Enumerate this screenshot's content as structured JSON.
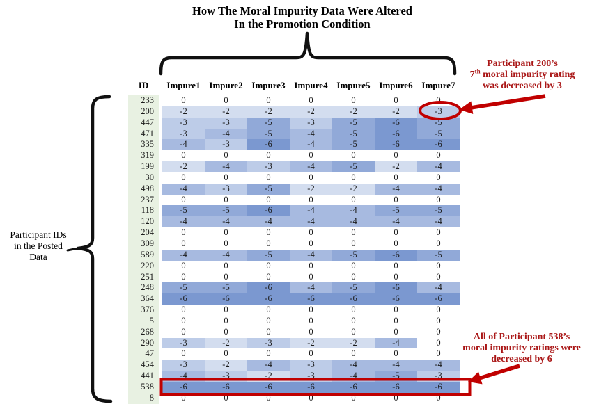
{
  "title": {
    "line1": "How The Moral Impurity Data Were Altered",
    "line2": "In the Promotion Condition"
  },
  "left_annotation": {
    "line1": "Participant IDs",
    "line2": "in the Posted",
    "line3": "Data"
  },
  "annotation_200": {
    "line1": "Participant 200’s",
    "line2_num": "7",
    "line2_sup": "th",
    "line2_rest": " moral impurity rating",
    "line3": "was decreased by 3"
  },
  "annotation_538": {
    "line1": "All of Participant 538’s",
    "line2": "moral impurity ratings were",
    "line3": "decreased by 6"
  },
  "colors": {
    "annotation_red": "#aa1717",
    "highlight_red": "#c00000",
    "id_column_bg": "#e8f1e2",
    "cell_zero": "#ffffff",
    "cell_max_blue": "#7b98d0",
    "brace_black": "#111111"
  },
  "chart_data": {
    "type": "heatmap",
    "title": "How The Moral Impurity Data Were Altered In the Promotion Condition",
    "id_column_label": "ID",
    "columns": [
      "Impure1",
      "Impure2",
      "Impure3",
      "Impure4",
      "Impure5",
      "Impure6",
      "Impure7"
    ],
    "value_range": [
      -6,
      0
    ],
    "legend": "0 = white, -6 = darkest blue",
    "rows": [
      {
        "id": "233",
        "values": [
          0,
          0,
          0,
          0,
          0,
          0,
          0
        ]
      },
      {
        "id": "200",
        "values": [
          -2,
          -2,
          -2,
          -2,
          -2,
          -2,
          -3
        ]
      },
      {
        "id": "447",
        "values": [
          -3,
          -3,
          -5,
          -3,
          -5,
          -6,
          -5
        ]
      },
      {
        "id": "471",
        "values": [
          -3,
          -4,
          -5,
          -4,
          -5,
          -6,
          -5
        ]
      },
      {
        "id": "335",
        "values": [
          -4,
          -3,
          -6,
          -4,
          -5,
          -6,
          -6
        ]
      },
      {
        "id": "319",
        "values": [
          0,
          0,
          0,
          0,
          0,
          0,
          0
        ]
      },
      {
        "id": "199",
        "values": [
          -2,
          -4,
          -3,
          -4,
          -5,
          -2,
          -4
        ]
      },
      {
        "id": "30",
        "values": [
          0,
          0,
          0,
          0,
          0,
          0,
          0
        ]
      },
      {
        "id": "498",
        "values": [
          -4,
          -3,
          -5,
          -2,
          -2,
          -4,
          -4
        ]
      },
      {
        "id": "237",
        "values": [
          0,
          0,
          0,
          0,
          0,
          0,
          0
        ]
      },
      {
        "id": "118",
        "values": [
          -5,
          -5,
          -6,
          -4,
          -4,
          -5,
          -5
        ]
      },
      {
        "id": "120",
        "values": [
          -4,
          -4,
          -4,
          -4,
          -4,
          -4,
          -4
        ]
      },
      {
        "id": "204",
        "values": [
          0,
          0,
          0,
          0,
          0,
          0,
          0
        ]
      },
      {
        "id": "309",
        "values": [
          0,
          0,
          0,
          0,
          0,
          0,
          0
        ]
      },
      {
        "id": "589",
        "values": [
          -4,
          -4,
          -5,
          -4,
          -5,
          -6,
          -5
        ]
      },
      {
        "id": "220",
        "values": [
          0,
          0,
          0,
          0,
          0,
          0,
          0
        ]
      },
      {
        "id": "251",
        "values": [
          0,
          0,
          0,
          0,
          0,
          0,
          0
        ]
      },
      {
        "id": "248",
        "values": [
          -5,
          -5,
          -6,
          -4,
          -5,
          -6,
          -4
        ]
      },
      {
        "id": "364",
        "values": [
          -6,
          -6,
          -6,
          -6,
          -6,
          -6,
          -6
        ]
      },
      {
        "id": "376",
        "values": [
          0,
          0,
          0,
          0,
          0,
          0,
          0
        ]
      },
      {
        "id": "5",
        "values": [
          0,
          0,
          0,
          0,
          0,
          0,
          0
        ]
      },
      {
        "id": "268",
        "values": [
          0,
          0,
          0,
          0,
          0,
          0,
          0
        ]
      },
      {
        "id": "290",
        "values": [
          -3,
          -2,
          -3,
          -2,
          -2,
          -4,
          0
        ]
      },
      {
        "id": "47",
        "values": [
          0,
          0,
          0,
          0,
          0,
          0,
          0
        ]
      },
      {
        "id": "454",
        "values": [
          -3,
          -2,
          -4,
          -3,
          -4,
          -4,
          -4
        ]
      },
      {
        "id": "441",
        "values": [
          -4,
          -3,
          -2,
          -3,
          -4,
          -5,
          -3
        ]
      },
      {
        "id": "538",
        "values": [
          -6,
          -6,
          -6,
          -6,
          -6,
          -6,
          -6
        ]
      },
      {
        "id": "8",
        "values": [
          0,
          0,
          0,
          0,
          0,
          0,
          0
        ]
      }
    ],
    "highlights": [
      {
        "target": "participant 200, Impure7",
        "shape": "circle"
      },
      {
        "target": "participant 538, all columns",
        "shape": "rectangle"
      }
    ]
  }
}
